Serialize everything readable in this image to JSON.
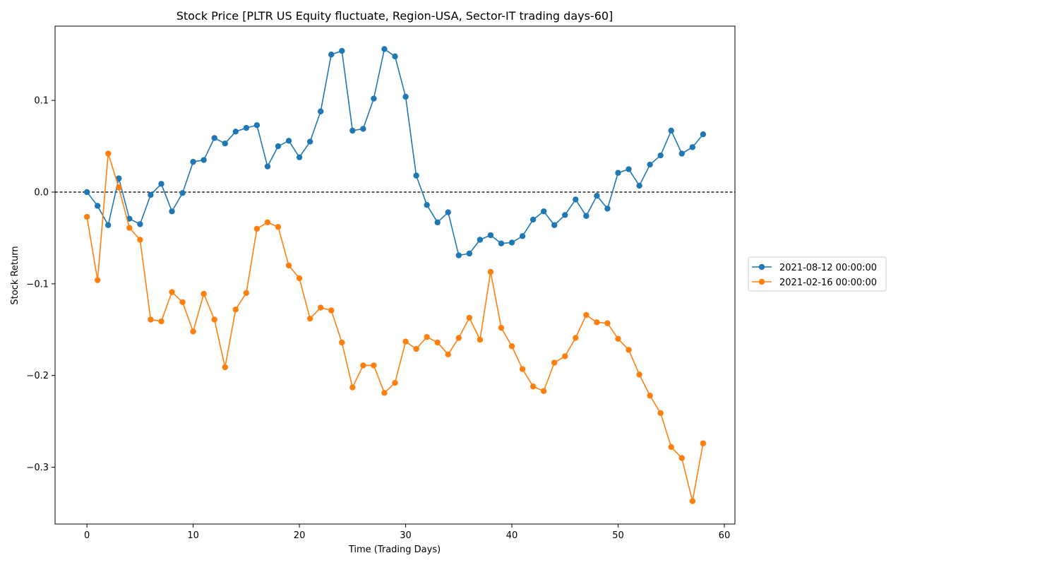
{
  "chart_data": {
    "type": "line",
    "title": "Stock Price [PLTR US Equity fluctuate, Region-USA, Sector-IT trading days-60]",
    "xlabel": "Time (Trading Days)",
    "ylabel": "Stock Return",
    "xlim": [
      -3,
      61
    ],
    "ylim": [
      -0.362,
      0.181
    ],
    "xticks": [
      0,
      10,
      20,
      30,
      40,
      50,
      60
    ],
    "yticks": [
      -0.3,
      -0.2,
      -0.1,
      0.0,
      0.1
    ],
    "ytick_labels": [
      "−0.3",
      "−0.2",
      "−0.1",
      "0.0",
      "0.1"
    ],
    "reference_line": {
      "y": 0.0,
      "style": "dashed",
      "color": "#000000"
    },
    "legend_position": "outside-right",
    "grid": false,
    "x": [
      0,
      1,
      2,
      3,
      4,
      5,
      6,
      7,
      8,
      9,
      10,
      11,
      12,
      13,
      14,
      15,
      16,
      17,
      18,
      19,
      20,
      21,
      22,
      23,
      24,
      25,
      26,
      27,
      28,
      29,
      30,
      31,
      32,
      33,
      34,
      35,
      36,
      37,
      38,
      39,
      40,
      41,
      42,
      43,
      44,
      45,
      46,
      47,
      48,
      49,
      50,
      51,
      52,
      53,
      54,
      55,
      56,
      57,
      58
    ],
    "series": [
      {
        "name": "2021-08-12 00:00:00",
        "color": "#1f77b4",
        "values": [
          0.0,
          -0.015,
          -0.036,
          0.015,
          -0.029,
          -0.035,
          -0.003,
          0.009,
          -0.021,
          -0.001,
          0.033,
          0.035,
          0.059,
          0.053,
          0.066,
          0.07,
          0.073,
          0.028,
          0.05,
          0.056,
          0.038,
          0.055,
          0.088,
          0.15,
          0.154,
          0.067,
          0.069,
          0.102,
          0.156,
          0.148,
          0.104,
          0.018,
          -0.014,
          -0.033,
          -0.022,
          -0.069,
          -0.067,
          -0.052,
          -0.047,
          -0.056,
          -0.055,
          -0.048,
          -0.03,
          -0.021,
          -0.036,
          -0.025,
          -0.008,
          -0.026,
          -0.004,
          -0.018,
          0.021,
          0.025,
          0.007,
          0.03,
          0.04,
          0.067,
          0.042,
          0.049,
          0.063
        ]
      },
      {
        "name": "2021-02-16 00:00:00",
        "color": "#ff7f0e",
        "values": [
          -0.027,
          -0.096,
          0.042,
          0.005,
          -0.039,
          -0.052,
          -0.139,
          -0.141,
          -0.109,
          -0.12,
          -0.152,
          -0.111,
          -0.139,
          -0.191,
          -0.128,
          -0.11,
          -0.04,
          -0.033,
          -0.038,
          -0.08,
          -0.094,
          -0.138,
          -0.126,
          -0.129,
          -0.164,
          -0.213,
          -0.189,
          -0.189,
          -0.219,
          -0.208,
          -0.163,
          -0.171,
          -0.158,
          -0.164,
          -0.177,
          -0.159,
          -0.137,
          -0.161,
          -0.087,
          -0.148,
          -0.168,
          -0.193,
          -0.212,
          -0.217,
          -0.186,
          -0.179,
          -0.159,
          -0.134,
          -0.142,
          -0.143,
          -0.16,
          -0.172,
          -0.199,
          -0.222,
          -0.241,
          -0.278,
          -0.29,
          -0.337,
          -0.274
        ]
      }
    ]
  }
}
